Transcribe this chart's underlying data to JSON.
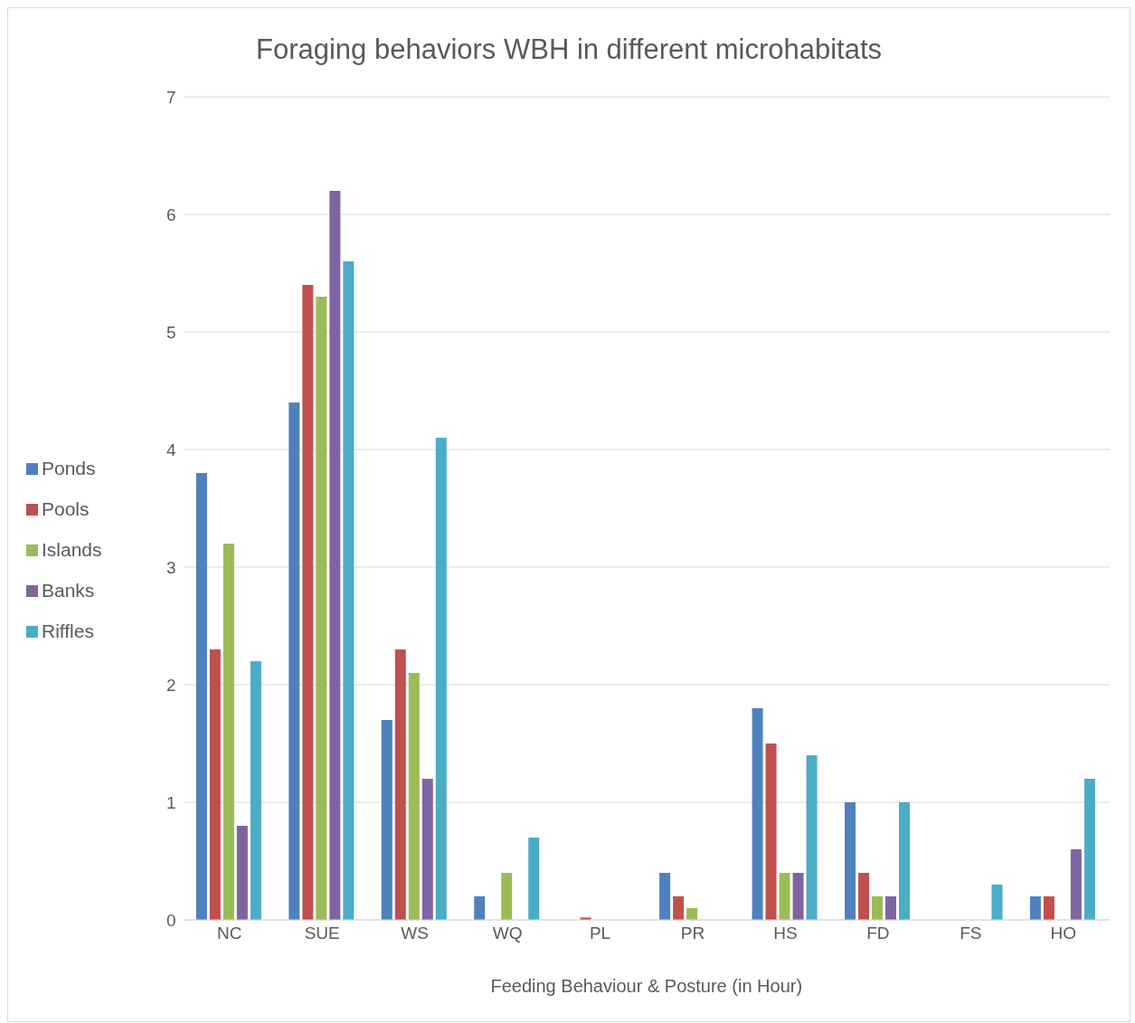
{
  "chart_data": {
    "type": "bar",
    "title": "Foraging behaviors  WBH in different microhabitats",
    "xlabel": "Feeding Behaviour & Posture    (in Hour)",
    "categories": [
      "NC",
      "SUE",
      "WS",
      "WQ",
      "PL",
      "PR",
      "HS",
      "FD",
      "FS",
      "HO"
    ],
    "series": [
      {
        "name": "Ponds",
        "color": "#4f81bd",
        "values": [
          3.8,
          4.4,
          1.7,
          0.2,
          0,
          0.4,
          1.8,
          1.0,
          0,
          0.2
        ]
      },
      {
        "name": "Pools",
        "color": "#c0504d",
        "values": [
          2.3,
          5.4,
          2.3,
          0,
          0.02,
          0.2,
          1.5,
          0.4,
          0,
          0.2
        ]
      },
      {
        "name": "Islands",
        "color": "#9bbb59",
        "values": [
          3.2,
          5.3,
          2.1,
          0.4,
          0,
          0.1,
          0.4,
          0.2,
          0,
          0
        ]
      },
      {
        "name": "Banks",
        "color": "#8064a2",
        "values": [
          0.8,
          6.2,
          1.2,
          0,
          0,
          0,
          0.4,
          0.2,
          0,
          0.6
        ]
      },
      {
        "name": "Riffles",
        "color": "#4bacc6",
        "values": [
          2.2,
          5.6,
          4.1,
          0.7,
          0,
          0,
          1.4,
          1.0,
          0.3,
          1.2
        ]
      }
    ],
    "ylim": [
      0,
      7
    ],
    "yticks": [
      0,
      1,
      2,
      3,
      4,
      5,
      6,
      7
    ],
    "grid": "y",
    "legend": "left"
  }
}
